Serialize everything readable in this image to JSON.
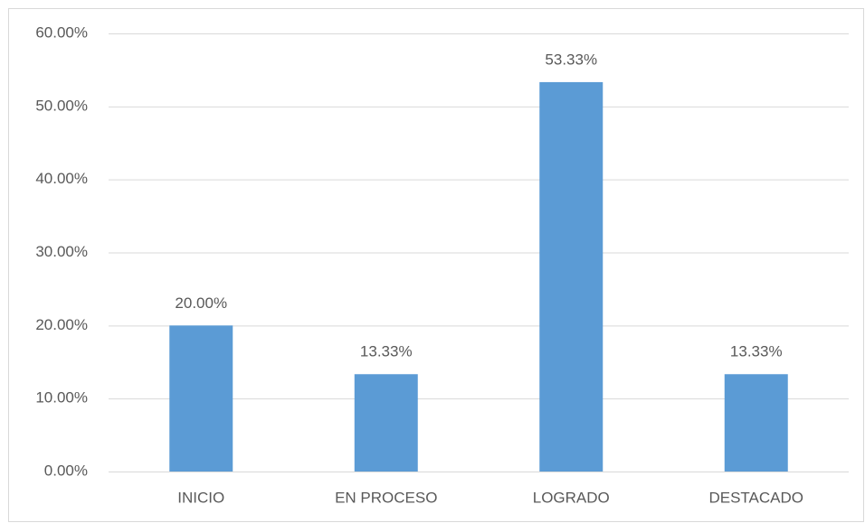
{
  "chart_data": {
    "type": "bar",
    "categories": [
      "INICIO",
      "EN PROCESO",
      "LOGRADO",
      "DESTACADO"
    ],
    "values": [
      20,
      13.33,
      53.33,
      13.33
    ],
    "value_labels": [
      "20.00%",
      "13.33%",
      "53.33%",
      "13.33%"
    ],
    "color": "#5b9bd5",
    "ylim": [
      0,
      60
    ],
    "yticks": [
      {
        "value": 0,
        "label": "0.00%"
      },
      {
        "value": 10,
        "label": "10.00%"
      },
      {
        "value": 20,
        "label": "20.00%"
      },
      {
        "value": 30,
        "label": "30.00%"
      },
      {
        "value": 40,
        "label": "40.00%"
      },
      {
        "value": 50,
        "label": "50.00%"
      },
      {
        "value": 60,
        "label": "60.00%"
      }
    ],
    "grid": true
  }
}
